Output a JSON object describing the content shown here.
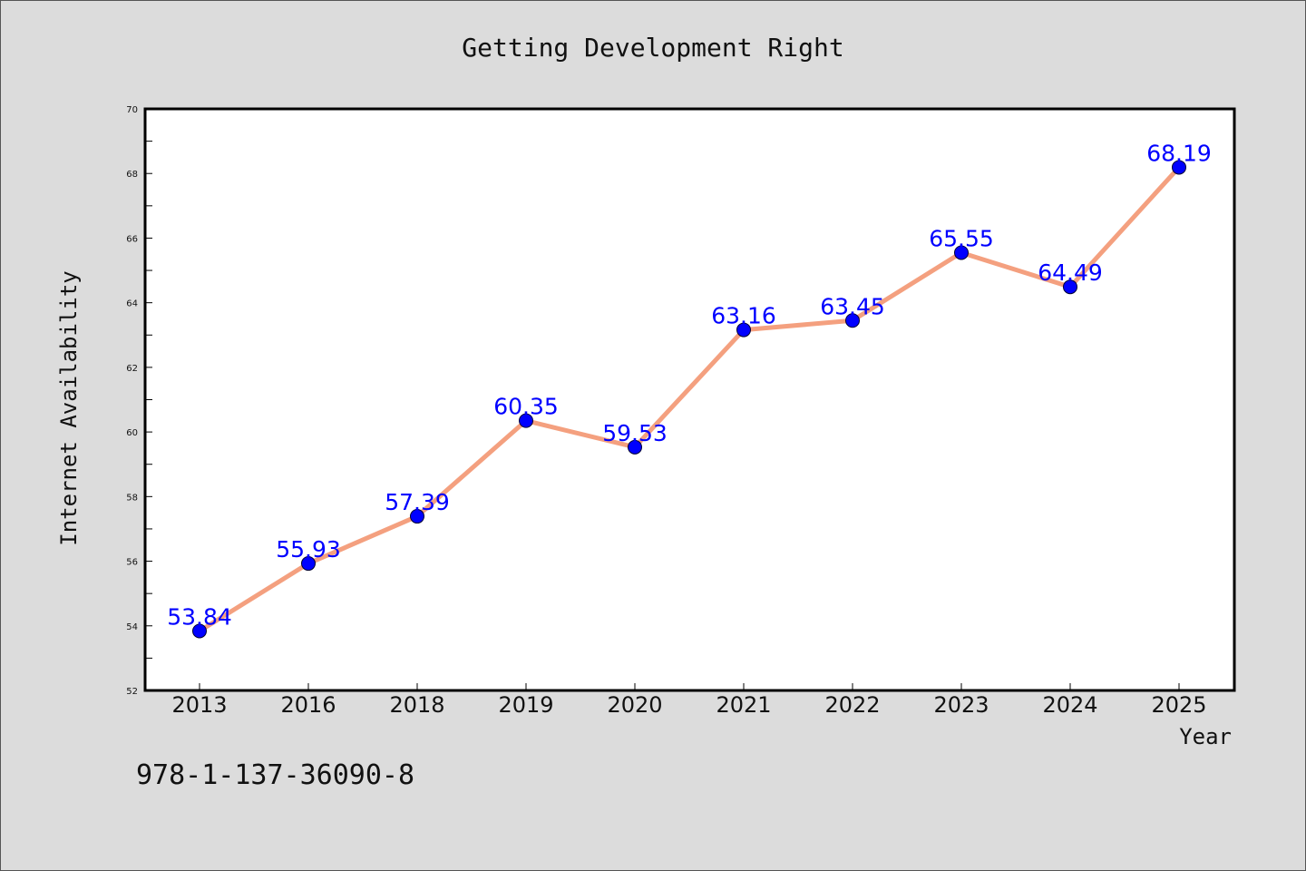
{
  "chart_data": {
    "type": "line",
    "title": "Getting Development Right",
    "xlabel": "Year",
    "ylabel": "Internet Availability",
    "categories": [
      "2013",
      "2016",
      "2018",
      "2019",
      "2020",
      "2021",
      "2022",
      "2023",
      "2024",
      "2025"
    ],
    "series": [
      {
        "values": [
          53.84,
          55.93,
          57.39,
          60.35,
          59.53,
          63.16,
          63.45,
          65.55,
          64.49,
          68.19
        ]
      }
    ],
    "data_labels": [
      "53.84",
      "55.93",
      "57.39",
      "60.35",
      "59.53",
      "63.16",
      "63.45",
      "65.55",
      "64.49",
      "68.19"
    ],
    "yticks": [
      "52",
      "54",
      "56",
      "58",
      "60",
      "62",
      "64",
      "66",
      "68",
      "70"
    ],
    "ylim": [
      52,
      70
    ],
    "grid": false,
    "colors": {
      "line": "#f4a07f",
      "marker": "#0000ff",
      "label": "#0000ff",
      "background": "#dcdcdc",
      "plot_background": "#ffffff"
    }
  },
  "footer": {
    "isbn": "978-1-137-36090-8"
  }
}
